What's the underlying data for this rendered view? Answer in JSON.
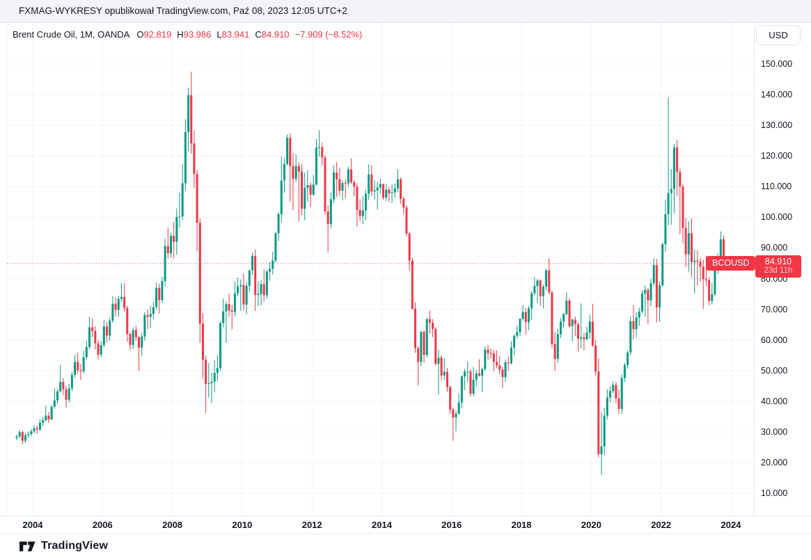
{
  "header": {
    "attribution": "FXMAG-WYKRESY opublikował TradingView.com, Paź 08, 2023 12:05 UTC+2"
  },
  "toolbar": {
    "currency_label": "USD"
  },
  "legend": {
    "title": "Brent Crude Oil, 1M, OANDA",
    "o_label": "O",
    "o_value": "92.819",
    "h_label": "H",
    "h_value": "93.986",
    "l_label": "L",
    "l_value": "83.941",
    "c_label": "C",
    "c_value": "84.910",
    "change": "−7.909 (−8.52%)"
  },
  "price_label": {
    "symbol": "BCOUSD",
    "price": "84.910",
    "countdown": "23d 11h"
  },
  "footer": {
    "brand": "TradingView"
  },
  "colors": {
    "up": "#089981",
    "down": "#F23645",
    "accent_red": "#F23645",
    "text": "#131722",
    "grid": "#F0F3FA",
    "border": "#E4E7EC"
  },
  "axes": {
    "price_ticks": [
      "150.000",
      "140.000",
      "130.000",
      "120.000",
      "110.000",
      "100.000",
      "90.000",
      "80.000",
      "70.000",
      "60.000",
      "50.000",
      "40.000",
      "30.000",
      "20.000",
      "10.000"
    ],
    "time_ticks": [
      "2004",
      "2006",
      "2008",
      "2010",
      "2012",
      "2014",
      "2016",
      "2018",
      "2020",
      "2022",
      "2024"
    ]
  },
  "chart_data": {
    "type": "candlestick",
    "title": "Brent Crude Oil",
    "symbol": "BCOUSD",
    "exchange": "OANDA",
    "timeframe": "1M",
    "start_month": "2003-07",
    "end_month": "2023-10",
    "last_price": 84.91,
    "ylabel": "USD",
    "ylim": [
      3,
      163
    ],
    "grid": true,
    "ohlc": [
      [
        28.0,
        29.2,
        27.3,
        28.5
      ],
      [
        28.5,
        30.6,
        27.9,
        29.9
      ],
      [
        29.9,
        30.4,
        25.9,
        27.1
      ],
      [
        27.1,
        29.6,
        26.4,
        28.9
      ],
      [
        28.9,
        30.1,
        28.1,
        29.3
      ],
      [
        29.3,
        30.9,
        28.6,
        30.2
      ],
      [
        30.2,
        32.1,
        29.5,
        31.2
      ],
      [
        31.2,
        32.0,
        29.4,
        30.8
      ],
      [
        30.8,
        34.1,
        30.2,
        33.0
      ],
      [
        33.0,
        34.8,
        31.9,
        33.8
      ],
      [
        33.8,
        38.5,
        33.3,
        35.3
      ],
      [
        35.3,
        36.5,
        32.9,
        34.1
      ],
      [
        34.1,
        38.9,
        33.8,
        38.2
      ],
      [
        38.2,
        44.2,
        37.6,
        40.3
      ],
      [
        40.3,
        44.0,
        39.1,
        43.2
      ],
      [
        43.2,
        51.9,
        42.8,
        46.3
      ],
      [
        46.3,
        47.6,
        42.0,
        43.9
      ],
      [
        43.9,
        45.0,
        38.0,
        40.5
      ],
      [
        40.5,
        45.6,
        39.6,
        44.2
      ],
      [
        44.2,
        49.6,
        43.3,
        48.6
      ],
      [
        48.6,
        55.1,
        47.7,
        52.8
      ],
      [
        52.8,
        55.9,
        48.9,
        50.1
      ],
      [
        50.1,
        52.1,
        46.9,
        49.8
      ],
      [
        49.8,
        56.5,
        49.1,
        54.4
      ],
      [
        54.4,
        59.6,
        53.6,
        57.7
      ],
      [
        57.7,
        67.5,
        56.9,
        64.1
      ],
      [
        64.1,
        67.0,
        60.9,
        62.9
      ],
      [
        62.9,
        64.4,
        56.9,
        58.9
      ],
      [
        58.9,
        59.9,
        53.6,
        55.2
      ],
      [
        55.2,
        59.6,
        54.4,
        58.3
      ],
      [
        58.3,
        66.4,
        57.6,
        64.4
      ],
      [
        64.4,
        65.8,
        59.1,
        61.4
      ],
      [
        61.4,
        67.3,
        59.7,
        66.3
      ],
      [
        66.3,
        74.3,
        65.6,
        71.8
      ],
      [
        71.8,
        73.9,
        67.6,
        69.8
      ],
      [
        69.8,
        74.4,
        67.4,
        73.4
      ],
      [
        73.4,
        78.6,
        72.3,
        74.0
      ],
      [
        74.0,
        78.5,
        69.2,
        70.4
      ],
      [
        70.4,
        71.2,
        59.4,
        61.9
      ],
      [
        61.9,
        62.5,
        56.5,
        58.4
      ],
      [
        58.4,
        64.1,
        57.0,
        63.2
      ],
      [
        63.2,
        64.6,
        59.7,
        60.9
      ],
      [
        60.9,
        61.2,
        49.9,
        57.5
      ],
      [
        57.5,
        62.4,
        54.8,
        61.1
      ],
      [
        61.1,
        69.1,
        59.8,
        68.1
      ],
      [
        68.1,
        69.9,
        63.5,
        67.5
      ],
      [
        67.5,
        71.1,
        63.9,
        68.5
      ],
      [
        68.5,
        72.4,
        66.8,
        70.7
      ],
      [
        70.7,
        78.7,
        69.9,
        77.0
      ],
      [
        77.0,
        78.3,
        68.6,
        73.0
      ],
      [
        73.0,
        80.6,
        72.1,
        79.2
      ],
      [
        79.2,
        93.1,
        77.5,
        90.6
      ],
      [
        90.6,
        96.6,
        86.5,
        88.3
      ],
      [
        88.3,
        95.0,
        86.9,
        93.9
      ],
      [
        93.9,
        98.5,
        86.6,
        92.0
      ],
      [
        92.0,
        102.9,
        87.8,
        100.1
      ],
      [
        100.1,
        108.0,
        96.7,
        100.3
      ],
      [
        100.3,
        117.4,
        99.0,
        111.1
      ],
      [
        111.1,
        132.0,
        108.8,
        127.8
      ],
      [
        127.8,
        142.3,
        121.6,
        139.8
      ],
      [
        139.8,
        147.5,
        120.8,
        124.1
      ],
      [
        124.1,
        128.3,
        109.6,
        114.1
      ],
      [
        114.1,
        115.5,
        88.9,
        98.2
      ],
      [
        98.2,
        99.7,
        59.0,
        65.3
      ],
      [
        65.3,
        68.8,
        47.4,
        53.5
      ],
      [
        53.5,
        54.9,
        36.2,
        45.6
      ],
      [
        45.6,
        52.5,
        41.2,
        45.9
      ],
      [
        45.9,
        49.3,
        39.4,
        46.4
      ],
      [
        46.4,
        53.5,
        43.0,
        49.2
      ],
      [
        49.2,
        55.1,
        46.5,
        50.8
      ],
      [
        50.8,
        66.0,
        49.8,
        65.5
      ],
      [
        65.5,
        73.5,
        64.2,
        69.3
      ],
      [
        69.3,
        72.5,
        59.0,
        71.7
      ],
      [
        71.7,
        75.1,
        67.6,
        69.6
      ],
      [
        69.6,
        71.5,
        63.4,
        69.1
      ],
      [
        69.1,
        78.9,
        67.8,
        75.2
      ],
      [
        75.2,
        80.3,
        74.2,
        77.5
      ],
      [
        77.5,
        79.7,
        69.5,
        77.9
      ],
      [
        77.9,
        81.7,
        69.6,
        71.5
      ],
      [
        71.5,
        78.8,
        68.4,
        77.6
      ],
      [
        77.6,
        83.0,
        75.7,
        82.7
      ],
      [
        82.7,
        88.5,
        81.3,
        87.4
      ],
      [
        87.4,
        89.6,
        69.5,
        74.7
      ],
      [
        74.7,
        79.2,
        70.9,
        75.0
      ],
      [
        75.0,
        79.6,
        71.2,
        78.2
      ],
      [
        78.2,
        83.0,
        72.6,
        74.6
      ],
      [
        74.6,
        83.0,
        73.5,
        82.3
      ],
      [
        82.3,
        85.4,
        79.3,
        83.2
      ],
      [
        83.2,
        88.8,
        81.4,
        85.9
      ],
      [
        85.9,
        95.2,
        85.2,
        94.8
      ],
      [
        94.8,
        101.7,
        92.3,
        101.0
      ],
      [
        101.0,
        119.8,
        98.3,
        112.0
      ],
      [
        112.0,
        119.2,
        108.0,
        117.4
      ],
      [
        117.4,
        127.0,
        116.8,
        125.9
      ],
      [
        125.9,
        127.5,
        105.2,
        116.7
      ],
      [
        116.7,
        120.8,
        102.4,
        112.5
      ],
      [
        112.5,
        120.5,
        111.5,
        116.7
      ],
      [
        116.7,
        118.0,
        98.7,
        114.9
      ],
      [
        114.9,
        117.4,
        100.8,
        102.8
      ],
      [
        102.8,
        114.6,
        99.0,
        109.6
      ],
      [
        109.6,
        115.4,
        105.1,
        110.5
      ],
      [
        110.5,
        111.4,
        103.3,
        107.4
      ],
      [
        107.4,
        113.8,
        107.0,
        110.7
      ],
      [
        110.7,
        125.5,
        110.3,
        122.7
      ],
      [
        122.7,
        128.4,
        119.8,
        122.9
      ],
      [
        122.9,
        124.3,
        117.0,
        119.5
      ],
      [
        119.5,
        120.2,
        100.8,
        101.9
      ],
      [
        101.9,
        103.9,
        88.5,
        97.8
      ],
      [
        97.8,
        108.2,
        96.4,
        105.9
      ],
      [
        105.9,
        117.0,
        104.6,
        114.6
      ],
      [
        114.6,
        118.0,
        106.6,
        112.4
      ],
      [
        112.4,
        116.1,
        107.0,
        108.7
      ],
      [
        108.7,
        112.0,
        105.5,
        111.2
      ],
      [
        111.2,
        112.3,
        106.3,
        111.1
      ],
      [
        111.1,
        116.5,
        110.1,
        115.6
      ],
      [
        115.6,
        119.2,
        110.9,
        111.4
      ],
      [
        111.4,
        112.2,
        106.8,
        110.0
      ],
      [
        110.0,
        111.1,
        96.8,
        102.4
      ],
      [
        102.4,
        105.9,
        98.7,
        100.4
      ],
      [
        100.4,
        106.9,
        97.7,
        102.2
      ],
      [
        102.2,
        109.0,
        99.1,
        107.7
      ],
      [
        107.7,
        117.3,
        105.6,
        114.0
      ],
      [
        114.0,
        117.0,
        106.9,
        108.4
      ],
      [
        108.4,
        112.0,
        105.8,
        108.8
      ],
      [
        108.8,
        111.6,
        102.6,
        109.7
      ],
      [
        109.7,
        112.6,
        107.6,
        110.8
      ],
      [
        110.8,
        111.0,
        105.7,
        106.4
      ],
      [
        106.4,
        111.0,
        105.3,
        109.0
      ],
      [
        109.0,
        109.8,
        105.0,
        107.8
      ],
      [
        107.8,
        110.8,
        104.6,
        108.1
      ],
      [
        108.1,
        111.1,
        106.4,
        109.4
      ],
      [
        109.4,
        115.7,
        108.1,
        112.4
      ],
      [
        112.4,
        113.0,
        104.4,
        106.0
      ],
      [
        106.0,
        106.8,
        101.1,
        103.2
      ],
      [
        103.2,
        103.9,
        93.9,
        94.7
      ],
      [
        94.7,
        95.3,
        82.6,
        85.9
      ],
      [
        85.9,
        86.9,
        69.8,
        70.2
      ],
      [
        70.2,
        72.2,
        55.8,
        57.3
      ],
      [
        57.3,
        58.0,
        45.2,
        52.8
      ],
      [
        52.8,
        63.0,
        51.4,
        62.6
      ],
      [
        62.6,
        63.1,
        52.5,
        55.1
      ],
      [
        55.1,
        67.1,
        54.3,
        66.8
      ],
      [
        66.8,
        69.6,
        62.0,
        65.6
      ],
      [
        65.6,
        66.8,
        60.9,
        63.6
      ],
      [
        63.6,
        64.1,
        51.6,
        52.2
      ],
      [
        52.2,
        56.8,
        42.2,
        54.2
      ],
      [
        54.2,
        55.0,
        46.7,
        48.4
      ],
      [
        48.4,
        54.0,
        46.9,
        49.6
      ],
      [
        49.6,
        50.9,
        43.1,
        44.6
      ],
      [
        44.6,
        45.3,
        35.9,
        37.3
      ],
      [
        37.3,
        38.0,
        27.1,
        34.7
      ],
      [
        34.7,
        37.0,
        30.2,
        36.0
      ],
      [
        36.0,
        42.5,
        35.5,
        39.6
      ],
      [
        39.6,
        48.5,
        37.7,
        48.1
      ],
      [
        48.1,
        50.5,
        43.6,
        49.7
      ],
      [
        49.7,
        52.9,
        46.2,
        49.7
      ],
      [
        49.7,
        50.5,
        41.5,
        42.5
      ],
      [
        42.5,
        51.2,
        41.6,
        47.0
      ],
      [
        47.0,
        50.1,
        44.9,
        49.1
      ],
      [
        49.1,
        53.7,
        48.0,
        48.3
      ],
      [
        48.3,
        51.0,
        43.0,
        50.5
      ],
      [
        50.5,
        57.9,
        49.9,
        56.8
      ],
      [
        56.8,
        58.4,
        53.6,
        55.7
      ],
      [
        55.7,
        57.3,
        54.0,
        55.6
      ],
      [
        55.6,
        56.7,
        49.7,
        52.8
      ],
      [
        52.8,
        56.6,
        50.8,
        51.7
      ],
      [
        51.7,
        54.7,
        48.9,
        50.3
      ],
      [
        50.3,
        51.3,
        44.3,
        47.9
      ],
      [
        47.9,
        53.6,
        46.3,
        52.7
      ],
      [
        52.7,
        54.7,
        49.8,
        52.4
      ],
      [
        52.4,
        59.5,
        52.0,
        57.5
      ],
      [
        57.5,
        61.7,
        55.0,
        61.4
      ],
      [
        61.4,
        64.6,
        60.4,
        62.6
      ],
      [
        62.6,
        67.0,
        61.2,
        66.9
      ],
      [
        66.9,
        71.3,
        66.3,
        69.1
      ],
      [
        69.1,
        70.5,
        61.8,
        65.8
      ],
      [
        65.8,
        71.1,
        63.2,
        70.3
      ],
      [
        70.3,
        75.9,
        66.6,
        75.2
      ],
      [
        75.2,
        80.5,
        74.5,
        77.6
      ],
      [
        77.6,
        79.9,
        72.0,
        79.4
      ],
      [
        79.4,
        79.8,
        71.2,
        74.3
      ],
      [
        74.3,
        78.0,
        70.3,
        77.4
      ],
      [
        77.4,
        83.3,
        76.0,
        82.7
      ],
      [
        82.7,
        86.7,
        74.8,
        75.5
      ],
      [
        75.5,
        76.2,
        57.5,
        58.7
      ],
      [
        58.7,
        62.5,
        49.9,
        53.8
      ],
      [
        53.8,
        63.6,
        52.5,
        61.9
      ],
      [
        61.9,
        67.1,
        60.6,
        66.0
      ],
      [
        66.0,
        68.9,
        64.0,
        68.4
      ],
      [
        68.4,
        75.6,
        68.0,
        72.8
      ],
      [
        72.8,
        73.6,
        64.0,
        64.5
      ],
      [
        64.5,
        67.0,
        59.5,
        66.6
      ],
      [
        66.6,
        67.6,
        61.3,
        65.2
      ],
      [
        65.2,
        65.7,
        56.2,
        60.4
      ],
      [
        60.4,
        71.9,
        57.2,
        60.8
      ],
      [
        60.8,
        62.4,
        56.5,
        60.2
      ],
      [
        60.2,
        64.3,
        60.0,
        62.4
      ],
      [
        62.4,
        68.2,
        60.4,
        66.0
      ],
      [
        66.0,
        71.8,
        57.7,
        58.2
      ],
      [
        58.2,
        60.0,
        48.4,
        49.7
      ],
      [
        49.7,
        53.9,
        21.7,
        22.7
      ],
      [
        22.7,
        36.4,
        16.0,
        25.3
      ],
      [
        25.3,
        37.9,
        22.6,
        35.3
      ],
      [
        35.3,
        43.9,
        34.1,
        41.2
      ],
      [
        41.2,
        44.9,
        39.6,
        43.3
      ],
      [
        43.3,
        46.5,
        42.7,
        45.3
      ],
      [
        45.3,
        46.3,
        39.3,
        40.9
      ],
      [
        40.9,
        43.8,
        35.7,
        37.5
      ],
      [
        37.5,
        48.8,
        35.9,
        47.6
      ],
      [
        47.6,
        52.5,
        46.3,
        51.8
      ],
      [
        51.8,
        56.6,
        50.6,
        55.9
      ],
      [
        55.9,
        67.7,
        55.0,
        66.1
      ],
      [
        66.1,
        71.4,
        60.3,
        63.5
      ],
      [
        63.5,
        69.0,
        60.9,
        67.3
      ],
      [
        67.3,
        70.5,
        64.6,
        69.3
      ],
      [
        69.3,
        76.2,
        68.7,
        75.1
      ],
      [
        75.1,
        77.8,
        67.6,
        76.3
      ],
      [
        76.3,
        76.9,
        65.1,
        72.9
      ],
      [
        72.9,
        80.0,
        71.0,
        78.5
      ],
      [
        78.5,
        86.7,
        77.6,
        84.4
      ],
      [
        84.4,
        86.4,
        65.7,
        70.6
      ],
      [
        70.6,
        79.1,
        66.0,
        77.8
      ],
      [
        77.8,
        91.7,
        77.3,
        91.2
      ],
      [
        91.2,
        105.8,
        88.8,
        101.0
      ],
      [
        101.0,
        139.1,
        97.4,
        107.9
      ],
      [
        107.9,
        115.7,
        97.6,
        109.3
      ],
      [
        109.3,
        124.0,
        101.3,
        122.8
      ],
      [
        122.8,
        125.2,
        107.0,
        114.8
      ],
      [
        114.8,
        115.9,
        94.5,
        110.0
      ],
      [
        110.0,
        110.8,
        91.5,
        96.5
      ],
      [
        96.5,
        99.8,
        83.7,
        87.9
      ],
      [
        87.9,
        98.7,
        82.3,
        94.8
      ],
      [
        94.8,
        99.6,
        80.6,
        85.4
      ],
      [
        85.4,
        89.4,
        75.1,
        85.9
      ],
      [
        85.9,
        89.2,
        77.7,
        85.5
      ],
      [
        85.5,
        86.8,
        79.1,
        83.9
      ],
      [
        83.9,
        86.2,
        70.1,
        79.8
      ],
      [
        79.8,
        87.5,
        77.6,
        79.5
      ],
      [
        79.5,
        80.4,
        71.3,
        72.7
      ],
      [
        72.7,
        78.5,
        71.5,
        74.9
      ],
      [
        74.9,
        85.9,
        74.2,
        85.6
      ],
      [
        85.6,
        88.2,
        81.6,
        86.9
      ],
      [
        86.9,
        95.4,
        84.6,
        92.8
      ],
      [
        92.819,
        93.986,
        83.941,
        84.91
      ]
    ]
  }
}
